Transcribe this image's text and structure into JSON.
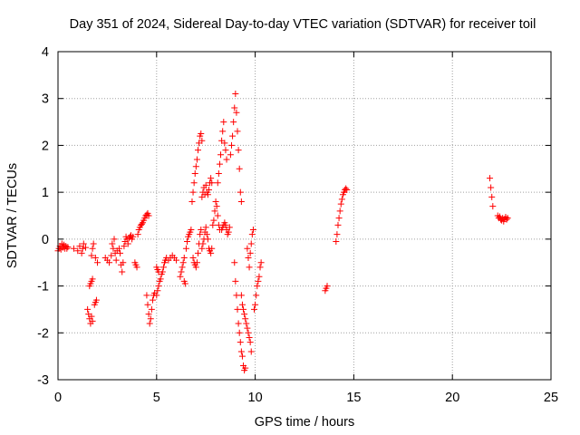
{
  "chart_data": {
    "type": "scatter",
    "title": "Day 351 of 2024, Sidereal Day-to-day VTEC variation (SDTVAR) for receiver toil",
    "xlabel": "GPS time / hours",
    "ylabel": "SDTVAR / TECUs",
    "xlim": [
      0,
      25
    ],
    "ylim": [
      -3,
      4
    ],
    "xticks": [
      0,
      5,
      10,
      15,
      20,
      25
    ],
    "yticks": [
      -3,
      -2,
      -1,
      0,
      1,
      2,
      3,
      4
    ],
    "xtick_labels": [
      "0",
      "5",
      "10",
      "15",
      "20",
      "25"
    ],
    "ytick_labels": [
      "-3",
      "-2",
      "-1",
      "0",
      "1",
      "2",
      "3",
      "4"
    ],
    "grid": true,
    "marker": "+",
    "color": "#ff0000",
    "series": [
      {
        "name": "SDTVAR",
        "points": [
          [
            0.0,
            -0.25
          ],
          [
            0.05,
            -0.2
          ],
          [
            0.1,
            -0.15
          ],
          [
            0.15,
            -0.22
          ],
          [
            0.2,
            -0.1
          ],
          [
            0.25,
            -0.18
          ],
          [
            0.3,
            -0.12
          ],
          [
            0.35,
            -0.2
          ],
          [
            0.4,
            -0.15
          ],
          [
            0.45,
            -0.2
          ],
          [
            0.5,
            -0.17
          ],
          [
            0.8,
            -0.2
          ],
          [
            1.0,
            -0.25
          ],
          [
            1.1,
            -0.15
          ],
          [
            1.2,
            -0.3
          ],
          [
            1.25,
            -0.2
          ],
          [
            1.3,
            -0.1
          ],
          [
            1.4,
            -0.18
          ],
          [
            1.5,
            -1.5
          ],
          [
            1.55,
            -1.6
          ],
          [
            1.6,
            -1.7
          ],
          [
            1.65,
            -1.8
          ],
          [
            1.7,
            -1.65
          ],
          [
            1.75,
            -1.75
          ],
          [
            1.6,
            -1.0
          ],
          [
            1.65,
            -0.95
          ],
          [
            1.7,
            -0.9
          ],
          [
            1.75,
            -0.85
          ],
          [
            1.7,
            -0.35
          ],
          [
            1.75,
            -0.2
          ],
          [
            1.8,
            -0.1
          ],
          [
            1.9,
            -0.4
          ],
          [
            2.0,
            -0.5
          ],
          [
            1.85,
            -1.4
          ],
          [
            1.9,
            -1.35
          ],
          [
            1.95,
            -1.3
          ],
          [
            2.4,
            -0.4
          ],
          [
            2.5,
            -0.45
          ],
          [
            2.6,
            -0.5
          ],
          [
            2.7,
            -0.35
          ],
          [
            2.75,
            -0.1
          ],
          [
            2.8,
            -0.2
          ],
          [
            2.85,
            0.0
          ],
          [
            2.9,
            -0.3
          ],
          [
            2.95,
            -0.45
          ],
          [
            3.0,
            -0.25
          ],
          [
            3.1,
            -0.2
          ],
          [
            3.15,
            -0.3
          ],
          [
            3.2,
            -0.55
          ],
          [
            3.25,
            -0.7
          ],
          [
            3.3,
            -0.5
          ],
          [
            3.35,
            -0.15
          ],
          [
            3.4,
            -0.05
          ],
          [
            3.45,
            0.05
          ],
          [
            3.5,
            0.0
          ],
          [
            3.55,
            -0.1
          ],
          [
            3.6,
            0.02
          ],
          [
            3.65,
            0.05
          ],
          [
            3.7,
            0.08
          ],
          [
            3.75,
            0.0
          ],
          [
            3.8,
            0.05
          ],
          [
            3.9,
            -0.5
          ],
          [
            3.95,
            -0.55
          ],
          [
            4.0,
            -0.6
          ],
          [
            4.05,
            0.1
          ],
          [
            4.1,
            0.2
          ],
          [
            4.15,
            0.25
          ],
          [
            4.2,
            0.3
          ],
          [
            4.25,
            0.32
          ],
          [
            4.3,
            0.35
          ],
          [
            4.35,
            0.4
          ],
          [
            4.4,
            0.45
          ],
          [
            4.45,
            0.5
          ],
          [
            4.5,
            0.52
          ],
          [
            4.55,
            0.55
          ],
          [
            4.6,
            0.5
          ],
          [
            4.5,
            -1.2
          ],
          [
            4.55,
            -1.4
          ],
          [
            4.6,
            -1.6
          ],
          [
            4.65,
            -1.8
          ],
          [
            4.7,
            -1.7
          ],
          [
            4.75,
            -1.5
          ],
          [
            4.8,
            -1.3
          ],
          [
            4.85,
            -1.2
          ],
          [
            4.9,
            -1.15
          ],
          [
            5.0,
            -1.2
          ],
          [
            5.05,
            -1.1
          ],
          [
            5.1,
            -1.0
          ],
          [
            5.15,
            -0.9
          ],
          [
            5.2,
            -0.85
          ],
          [
            5.25,
            -0.75
          ],
          [
            5.3,
            -0.7
          ],
          [
            5.35,
            -0.6
          ],
          [
            5.4,
            -0.5
          ],
          [
            5.45,
            -0.45
          ],
          [
            5.5,
            -0.4
          ],
          [
            5.0,
            -0.6
          ],
          [
            5.05,
            -0.65
          ],
          [
            5.1,
            -0.7
          ],
          [
            5.6,
            -0.45
          ],
          [
            5.7,
            -0.4
          ],
          [
            5.8,
            -0.35
          ],
          [
            5.9,
            -0.4
          ],
          [
            6.0,
            -0.45
          ],
          [
            6.2,
            -0.8
          ],
          [
            6.25,
            -0.7
          ],
          [
            6.3,
            -0.6
          ],
          [
            6.35,
            -0.5
          ],
          [
            6.4,
            -0.4
          ],
          [
            6.5,
            -0.2
          ],
          [
            6.55,
            -0.05
          ],
          [
            6.6,
            0.05
          ],
          [
            6.65,
            0.1
          ],
          [
            6.7,
            0.15
          ],
          [
            6.75,
            0.2
          ],
          [
            6.4,
            -0.9
          ],
          [
            6.45,
            -0.95
          ],
          [
            6.8,
            0.8
          ],
          [
            6.85,
            1.0
          ],
          [
            6.9,
            1.2
          ],
          [
            6.95,
            1.4
          ],
          [
            7.0,
            1.55
          ],
          [
            7.05,
            1.7
          ],
          [
            7.1,
            1.9
          ],
          [
            7.15,
            2.05
          ],
          [
            7.2,
            2.2
          ],
          [
            7.25,
            2.25
          ],
          [
            7.3,
            2.1
          ],
          [
            6.85,
            -0.4
          ],
          [
            6.9,
            -0.5
          ],
          [
            6.95,
            -0.55
          ],
          [
            7.0,
            -0.6
          ],
          [
            7.05,
            -0.5
          ],
          [
            7.1,
            -0.3
          ],
          [
            7.15,
            -0.1
          ],
          [
            7.2,
            0.1
          ],
          [
            7.25,
            0.2
          ],
          [
            7.3,
            0.9
          ],
          [
            7.35,
            1.0
          ],
          [
            7.4,
            1.1
          ],
          [
            7.45,
            0.95
          ],
          [
            7.5,
            1.15
          ],
          [
            7.55,
            1.0
          ],
          [
            7.6,
            0.95
          ],
          [
            7.65,
            1.05
          ],
          [
            7.7,
            1.2
          ],
          [
            7.75,
            1.3
          ],
          [
            7.8,
            1.2
          ],
          [
            7.3,
            -0.2
          ],
          [
            7.35,
            -0.1
          ],
          [
            7.4,
            0.0
          ],
          [
            7.45,
            0.15
          ],
          [
            7.5,
            0.25
          ],
          [
            7.55,
            0.1
          ],
          [
            7.6,
            0.0
          ],
          [
            7.65,
            -0.2
          ],
          [
            7.7,
            -0.25
          ],
          [
            7.75,
            -0.3
          ],
          [
            7.8,
            -0.2
          ],
          [
            7.85,
            0.3
          ],
          [
            7.9,
            0.4
          ],
          [
            7.95,
            0.6
          ],
          [
            8.0,
            0.8
          ],
          [
            8.05,
            0.7
          ],
          [
            8.1,
            0.5
          ],
          [
            8.15,
            0.3
          ],
          [
            8.2,
            0.2
          ],
          [
            8.1,
            1.2
          ],
          [
            8.15,
            1.4
          ],
          [
            8.2,
            1.6
          ],
          [
            8.25,
            1.8
          ],
          [
            8.3,
            2.1
          ],
          [
            8.35,
            2.3
          ],
          [
            8.4,
            2.5
          ],
          [
            8.45,
            2.05
          ],
          [
            8.5,
            1.9
          ],
          [
            8.55,
            1.7
          ],
          [
            8.3,
            0.2
          ],
          [
            8.35,
            0.25
          ],
          [
            8.4,
            0.3
          ],
          [
            8.45,
            0.35
          ],
          [
            8.5,
            0.3
          ],
          [
            8.55,
            0.2
          ],
          [
            8.6,
            0.1
          ],
          [
            8.65,
            0.15
          ],
          [
            8.7,
            0.25
          ],
          [
            8.75,
            1.8
          ],
          [
            8.8,
            2.0
          ],
          [
            8.85,
            2.2
          ],
          [
            8.9,
            2.5
          ],
          [
            8.95,
            2.8
          ],
          [
            9.0,
            3.1
          ],
          [
            9.05,
            2.7
          ],
          [
            9.1,
            2.3
          ],
          [
            9.15,
            1.9
          ],
          [
            9.2,
            1.5
          ],
          [
            9.25,
            1.0
          ],
          [
            9.3,
            0.8
          ],
          [
            8.95,
            -0.5
          ],
          [
            9.0,
            -0.9
          ],
          [
            9.05,
            -1.2
          ],
          [
            9.1,
            -1.5
          ],
          [
            9.15,
            -1.8
          ],
          [
            9.2,
            -2.0
          ],
          [
            9.25,
            -2.2
          ],
          [
            9.3,
            -2.4
          ],
          [
            9.35,
            -2.5
          ],
          [
            9.4,
            -2.7
          ],
          [
            9.45,
            -2.8
          ],
          [
            9.5,
            -2.75
          ],
          [
            9.3,
            -1.2
          ],
          [
            9.35,
            -1.4
          ],
          [
            9.4,
            -1.5
          ],
          [
            9.45,
            -1.6
          ],
          [
            9.5,
            -1.7
          ],
          [
            9.55,
            -1.8
          ],
          [
            9.6,
            -1.9
          ],
          [
            9.65,
            -2.0
          ],
          [
            9.7,
            -2.1
          ],
          [
            9.75,
            -2.2
          ],
          [
            9.8,
            -2.4
          ],
          [
            9.6,
            -0.2
          ],
          [
            9.65,
            -0.4
          ],
          [
            9.7,
            -0.6
          ],
          [
            9.75,
            -0.3
          ],
          [
            9.8,
            -0.1
          ],
          [
            9.85,
            0.1
          ],
          [
            9.9,
            0.2
          ],
          [
            9.95,
            -1.5
          ],
          [
            10.0,
            -1.4
          ],
          [
            10.05,
            -1.2
          ],
          [
            10.1,
            -1.0
          ],
          [
            10.15,
            -0.9
          ],
          [
            10.2,
            -0.8
          ],
          [
            10.25,
            -0.6
          ],
          [
            10.3,
            -0.5
          ],
          [
            13.55,
            -1.1
          ],
          [
            13.6,
            -1.05
          ],
          [
            13.65,
            -1.0
          ],
          [
            14.1,
            -0.05
          ],
          [
            14.15,
            0.1
          ],
          [
            14.2,
            0.3
          ],
          [
            14.25,
            0.45
          ],
          [
            14.3,
            0.6
          ],
          [
            14.35,
            0.75
          ],
          [
            14.4,
            0.85
          ],
          [
            14.45,
            0.95
          ],
          [
            14.5,
            1.0
          ],
          [
            14.55,
            1.05
          ],
          [
            14.6,
            1.08
          ],
          [
            14.65,
            1.05
          ],
          [
            21.9,
            1.3
          ],
          [
            21.95,
            1.1
          ],
          [
            22.0,
            0.9
          ],
          [
            22.05,
            0.7
          ],
          [
            22.3,
            0.5
          ],
          [
            22.35,
            0.45
          ],
          [
            22.4,
            0.48
          ],
          [
            22.45,
            0.42
          ],
          [
            22.5,
            0.4
          ],
          [
            22.55,
            0.45
          ],
          [
            22.6,
            0.38
          ],
          [
            22.65,
            0.43
          ],
          [
            22.7,
            0.47
          ],
          [
            22.75,
            0.42
          ],
          [
            22.8,
            0.45
          ]
        ]
      }
    ]
  }
}
